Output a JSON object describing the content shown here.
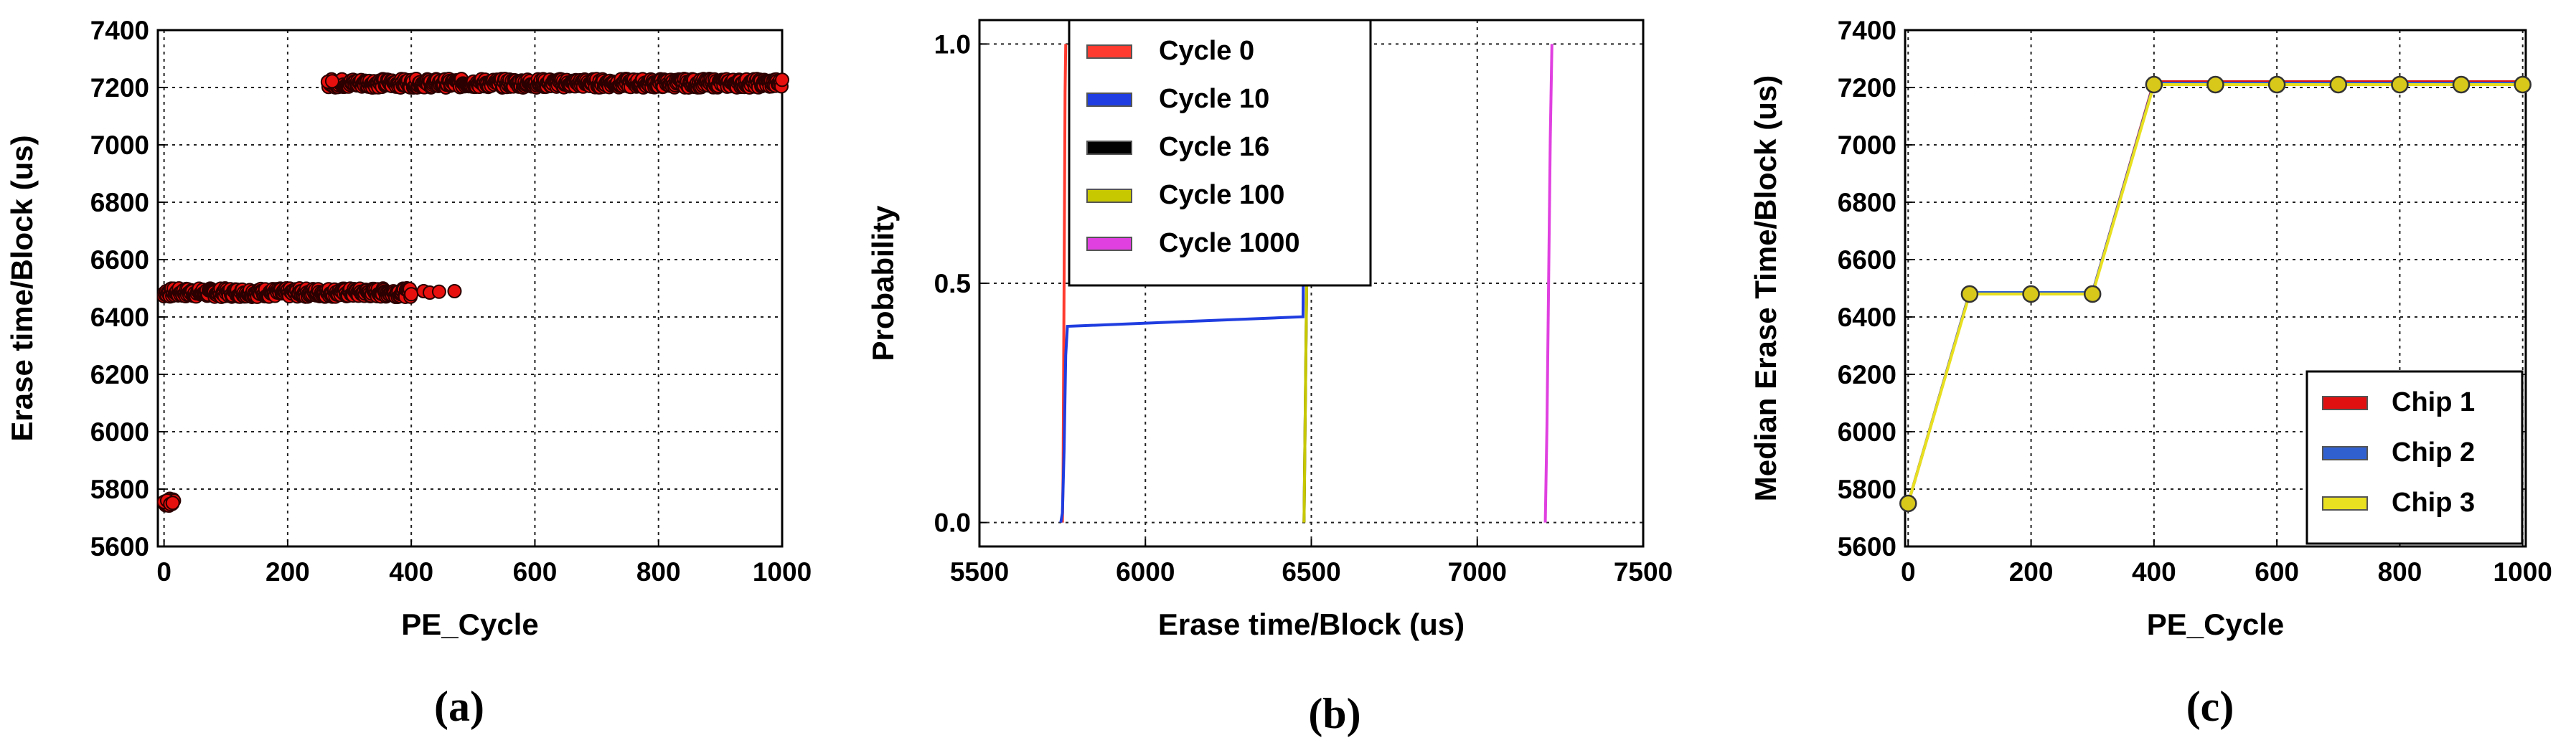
{
  "chart_data": [
    {
      "id": "a",
      "type": "scatter",
      "caption": "(a)",
      "xlabel": "PE_Cycle",
      "ylabel": "Erase time/Block (us)",
      "xlim": [
        -10,
        1000
      ],
      "ylim": [
        5600,
        7400
      ],
      "xticks": [
        "0",
        "200",
        "400",
        "600",
        "800",
        "1000"
      ],
      "yticks": [
        "5600",
        "5800",
        "6000",
        "6200",
        "6400",
        "6600",
        "6800",
        "7000",
        "7200",
        "7400"
      ],
      "grid": true,
      "marker_fill": "#e8100e",
      "marker_edge": "#2a0000",
      "clusters": [
        {
          "x_start": 0,
          "x_end": 16,
          "y": 5755
        },
        {
          "x_start": 0,
          "x_end": 400,
          "y": 6485
        },
        {
          "x_start": 265,
          "x_end": 1000,
          "y": 7215
        }
      ],
      "points": [
        [
          0,
          5755
        ],
        [
          5,
          5760
        ],
        [
          10,
          5748
        ],
        [
          14,
          5752
        ],
        [
          420,
          6490
        ],
        [
          430,
          6485
        ],
        [
          445,
          6488
        ],
        [
          470,
          6490
        ],
        [
          265,
          7220
        ],
        [
          272,
          7222
        ]
      ]
    },
    {
      "id": "b",
      "type": "line",
      "caption": "(b)",
      "xlabel": "Erase time/Block (us)",
      "ylabel": "Probability",
      "xlim": [
        5500,
        7500
      ],
      "ylim": [
        -0.05,
        1.05
      ],
      "xticks": [
        "5500",
        "6000",
        "6500",
        "7000",
        "7500"
      ],
      "yticks": [
        "0.0",
        "0.5",
        "1.0"
      ],
      "grid": true,
      "legend_position": "top-left",
      "series": [
        {
          "name": "Cycle 0",
          "color": "#ff3b2f",
          "x": [
            5750,
            5752,
            5755,
            5758,
            5760
          ],
          "y": [
            0,
            0.1,
            0.5,
            0.9,
            1.0
          ]
        },
        {
          "name": "Cycle 10",
          "color": "#1f3de0",
          "x": [
            5745,
            5750,
            5755,
            5760,
            5765,
            6475,
            6480,
            6490
          ],
          "y": [
            0,
            0.02,
            0.15,
            0.35,
            0.41,
            0.43,
            0.9,
            1.0
          ]
        },
        {
          "name": "Cycle 16",
          "color": "#000000",
          "x": [
            6478,
            6482,
            6486,
            6490,
            6494
          ],
          "y": [
            0,
            0.25,
            0.5,
            0.75,
            1.0
          ]
        },
        {
          "name": "Cycle 100",
          "color": "#c8c800",
          "x": [
            6478,
            6482,
            6486,
            6490,
            6494
          ],
          "y": [
            0,
            0.25,
            0.5,
            0.75,
            1.0
          ]
        },
        {
          "name": "Cycle 1000",
          "color": "#e040e0",
          "x": [
            7205,
            7210,
            7215,
            7220,
            7225
          ],
          "y": [
            0,
            0.2,
            0.5,
            0.8,
            1.0
          ]
        }
      ]
    },
    {
      "id": "c",
      "type": "line",
      "caption": "(c)",
      "xlabel": "PE_Cycle",
      "ylabel": "Median Erase Time/Block (us)",
      "xlim": [
        -5,
        1005
      ],
      "ylim": [
        5600,
        7400
      ],
      "xticks": [
        "0",
        "200",
        "400",
        "600",
        "800",
        "1000"
      ],
      "yticks": [
        "5600",
        "5800",
        "6000",
        "6200",
        "6400",
        "6600",
        "6800",
        "7000",
        "7200",
        "7400"
      ],
      "grid": true,
      "legend_position": "bottom-right",
      "x": [
        0,
        100,
        200,
        300,
        400,
        500,
        600,
        700,
        800,
        900,
        1000
      ],
      "series": [
        {
          "name": "Chip 1",
          "color": "#e01010",
          "values": [
            5750,
            6485,
            6485,
            6485,
            7220,
            7220,
            7220,
            7220,
            7220,
            7220,
            7220
          ]
        },
        {
          "name": "Chip 2",
          "color": "#3060d0",
          "values": [
            5750,
            6485,
            6485,
            6485,
            7215,
            7215,
            7215,
            7215,
            7215,
            7215,
            7215
          ]
        },
        {
          "name": "Chip 3",
          "color": "#e8e020",
          "values": [
            5750,
            6480,
            6480,
            6480,
            7210,
            7210,
            7210,
            7210,
            7210,
            7210,
            7210
          ]
        }
      ],
      "marker_color": "#d8c81a"
    }
  ]
}
